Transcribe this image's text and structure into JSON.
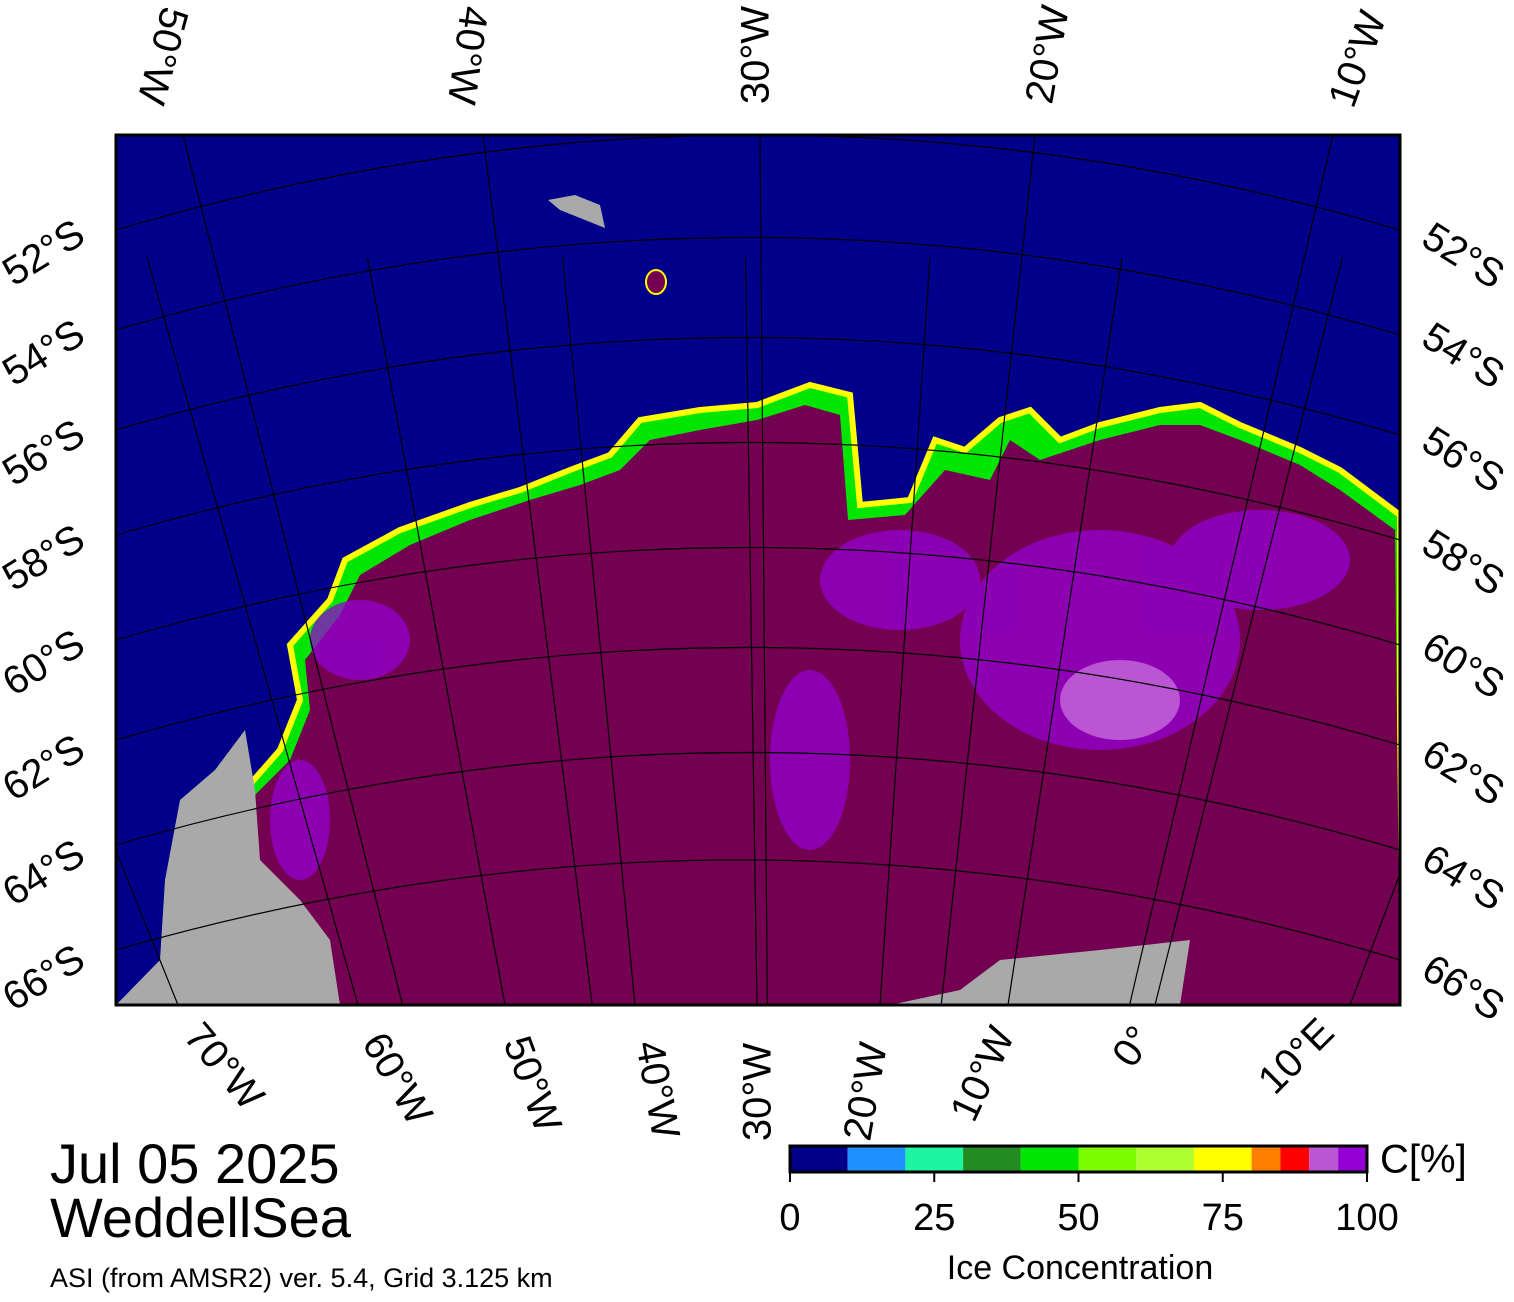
{
  "map": {
    "top_labels": [
      "50°W",
      "40°W",
      "30°W",
      "20°W",
      "10°W"
    ],
    "left_labels": [
      "52°S",
      "54°S",
      "56°S",
      "58°S",
      "60°S",
      "62°S",
      "64°S",
      "66°S"
    ],
    "right_labels": [
      "52°S",
      "54°S",
      "56°S",
      "58°S",
      "60°S",
      "62°S",
      "64°S",
      "66°S"
    ],
    "bottom_labels": [
      "70°W",
      "60°W",
      "50°W",
      "40°W",
      "30°W",
      "20°W",
      "10°W",
      "0°",
      "10°E"
    ]
  },
  "date": "Jul 05 2025",
  "region": "WeddellSea",
  "source": "ASI (from AMSR2) ver. 5.4,  Grid 3.125 km",
  "colorbar": {
    "title": "Ice Concentration",
    "unit": "C[%]",
    "xlim": [
      0,
      100
    ],
    "xticks": [
      0,
      25,
      50,
      75,
      100
    ],
    "bins": [
      0,
      10,
      20,
      30,
      40,
      50,
      60,
      70,
      80,
      85,
      90,
      95,
      100
    ],
    "colors": [
      "#00008b",
      "#1e90ff",
      "#1ef5a0",
      "#228b22",
      "#00e600",
      "#7cfc00",
      "#adff2f",
      "#ffff00",
      "#ff8000",
      "#ff0000",
      "#ba55d3",
      "#9400d3"
    ]
  }
}
